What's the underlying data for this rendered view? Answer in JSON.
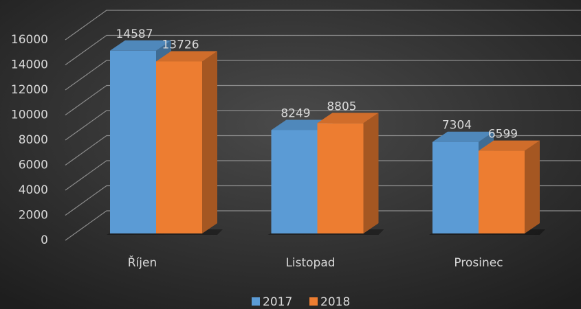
{
  "chart_data": {
    "type": "bar3d",
    "categories": [
      "Říjen",
      "Listopad",
      "Prosinec"
    ],
    "series": [
      {
        "name": "2017",
        "color": "#5b9bd5",
        "values": [
          14587,
          8249,
          7304
        ]
      },
      {
        "name": "2018",
        "color": "#ed7d31",
        "values": [
          13726,
          8805,
          6599
        ]
      }
    ],
    "ylim": [
      0,
      16000
    ],
    "yticks": [
      0,
      2000,
      4000,
      6000,
      8000,
      10000,
      12000,
      14000,
      16000
    ],
    "grid": true,
    "legend": "bottom"
  }
}
